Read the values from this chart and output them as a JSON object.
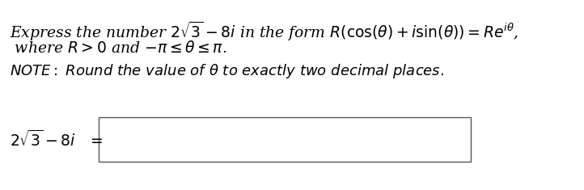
{
  "bg_color": "#ffffff",
  "line1": "Express the number $2\\sqrt{3} - 8i$ in the form $R(\\cos(\\theta) + i\\sin(\\theta)) = Re^{i\\theta}$,",
  "line2": " where $R > 0$ and $-\\pi \\leq \\theta \\leq \\pi$.",
  "line3": "NOTE: Round the value of $\\theta$ to exactly two decimal places.",
  "label": "$2\\sqrt{3} - 8i$",
  "equals": "$=$",
  "font_size_main": 13.5,
  "font_size_note": 13.0,
  "font_size_label": 13.5,
  "bg_color_hex": "#ffffff"
}
